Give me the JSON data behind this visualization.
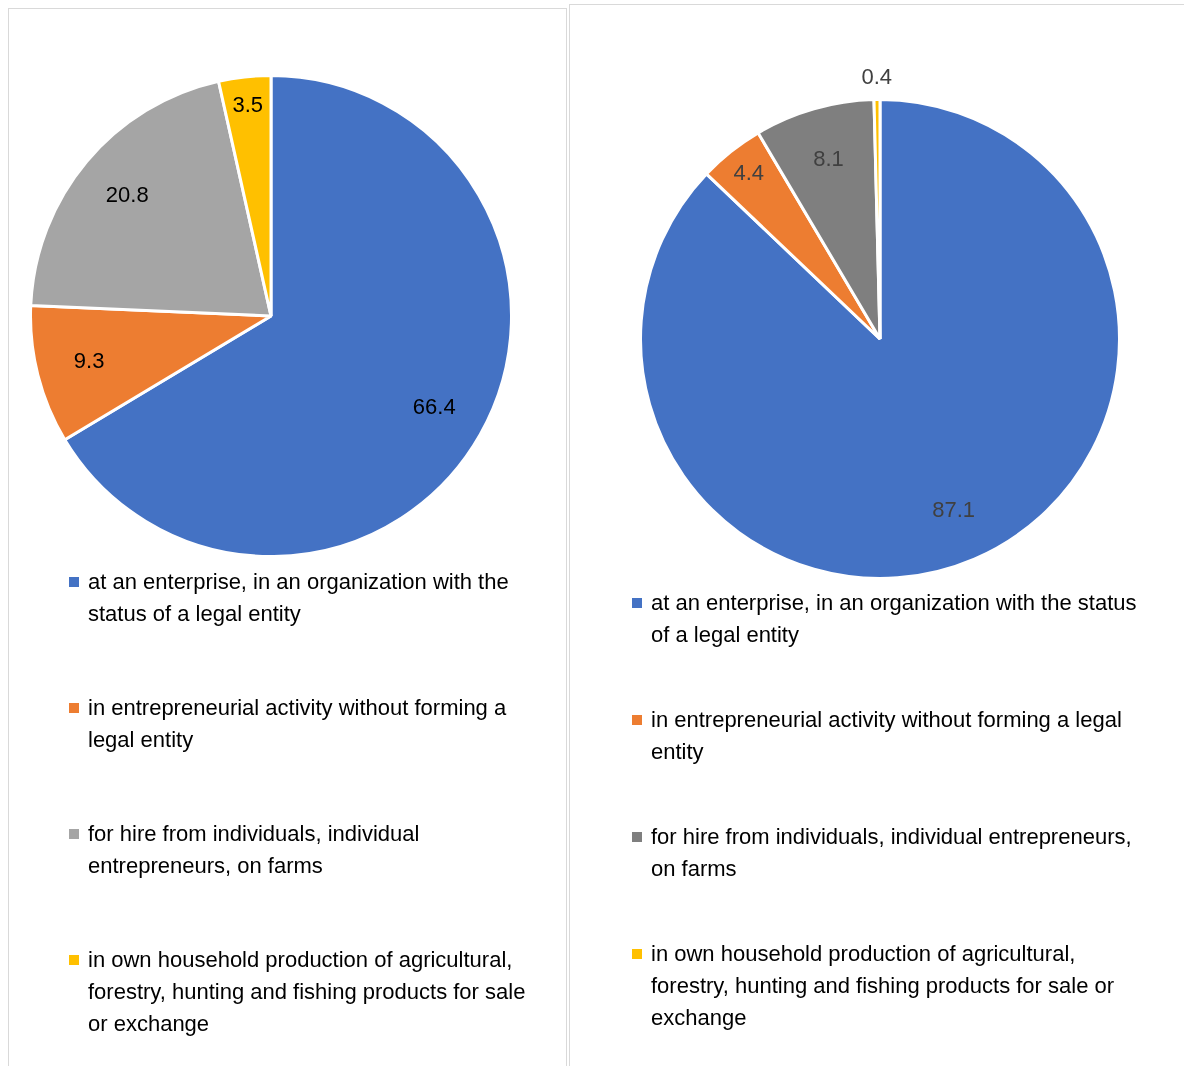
{
  "chart_data": [
    {
      "type": "pie",
      "categories": [
        "at an enterprise, in an organization with the status of a legal entity",
        "in entrepreneurial activity without forming a legal entity",
        "for hire from individuals, individual entrepreneurs, on farms",
        "in own household production of agricultural, forestry, hunting and fishing products for sale or exchange"
      ],
      "values": [
        66.4,
        9.3,
        20.8,
        3.5
      ],
      "colors": [
        "#4472c4",
        "#ed7d31",
        "#a5a5a5",
        "#ffc000"
      ],
      "data_labels": true,
      "legend": "bottom"
    },
    {
      "type": "pie",
      "categories": [
        "at an enterprise, in an organization with the status of a legal entity",
        "in entrepreneurial activity without forming a legal entity",
        "for hire from individuals, individual entrepreneurs, on farms",
        "in own household production of agricultural, forestry, hunting and fishing products for sale or exchange"
      ],
      "values": [
        87.1,
        4.4,
        8.1,
        0.4
      ],
      "colors": [
        "#4472c4",
        "#ed7d31",
        "#7f7f7f",
        "#ffc000"
      ],
      "data_labels": true,
      "legend": "bottom"
    }
  ]
}
